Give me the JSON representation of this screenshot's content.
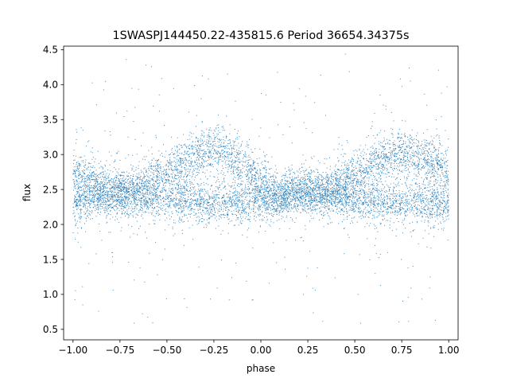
{
  "chart_data": {
    "type": "scatter",
    "title": "1SWASPJ144450.22-435815.6 Period 36654.34375s",
    "xlabel": "phase",
    "ylabel": "flux",
    "xlim": [
      -1.05,
      1.05
    ],
    "ylim": [
      0.35,
      4.55
    ],
    "xticks": [
      -1.0,
      -0.75,
      -0.5,
      -0.25,
      0.0,
      0.25,
      0.5,
      0.75,
      1.0
    ],
    "xtick_labels": [
      "−1.00",
      "−0.75",
      "−0.50",
      "−0.25",
      "0.00",
      "0.25",
      "0.50",
      "0.75",
      "1.00"
    ],
    "yticks": [
      0.5,
      1.0,
      1.5,
      2.0,
      2.5,
      3.0,
      3.5,
      4.0,
      4.5
    ],
    "ytick_labels": [
      "0.5",
      "1.0",
      "1.5",
      "2.0",
      "2.5",
      "3.0",
      "3.5",
      "4.0",
      "4.5"
    ],
    "grid": false,
    "legend": "none",
    "marker_color": "#1f77b4",
    "x_range": [
      -1.0,
      1.0
    ],
    "y_range": [
      0.55,
      4.45
    ],
    "series": [
      {
        "x": [
          -1.0,
          -0.9,
          -0.8,
          -0.7,
          -0.6,
          -0.5,
          -0.4,
          -0.3,
          -0.25,
          -0.2,
          -0.1,
          0.0,
          0.1,
          0.2,
          0.3,
          0.4,
          0.5,
          0.6,
          0.7,
          0.75,
          0.8,
          0.9,
          1.0
        ],
        "y_upper_branch": [
          2.75,
          2.6,
          2.45,
          2.45,
          2.6,
          2.75,
          2.9,
          3.05,
          3.1,
          3.05,
          2.85,
          2.6,
          2.45,
          2.45,
          2.45,
          2.55,
          2.7,
          2.85,
          3.0,
          3.05,
          3.0,
          2.9,
          2.75
        ],
        "y_lower_branch": [
          2.3,
          2.35,
          2.45,
          2.45,
          2.4,
          2.35,
          2.35,
          2.3,
          2.3,
          2.3,
          2.3,
          2.35,
          2.4,
          2.45,
          2.45,
          2.4,
          2.35,
          2.3,
          2.3,
          2.3,
          2.3,
          2.3,
          2.3
        ]
      }
    ]
  }
}
